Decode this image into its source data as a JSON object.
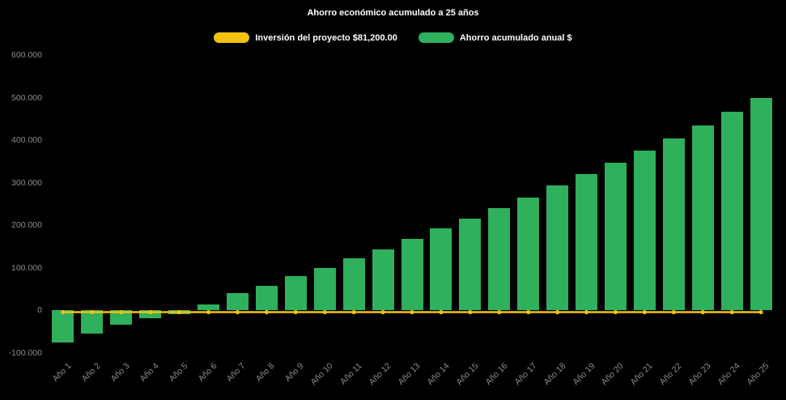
{
  "chart_data": {
    "type": "bar",
    "title": "Ahorro económico acumulado a 25 años",
    "background": "#000000",
    "legend_position": "top",
    "categories": [
      "Año 1",
      "Año 2",
      "Año 3",
      "Año 4",
      "Año 5",
      "Año 6",
      "Año 7",
      "Año 8",
      "Año 9",
      "Año 10",
      "Año 11",
      "Año 12",
      "Año 13",
      "Año 14",
      "Año 15",
      "Año 16",
      "Año 17",
      "Año 18",
      "Año 19",
      "Año 20",
      "Año 21",
      "Año 22",
      "Año 23",
      "Año 24",
      "Año 25"
    ],
    "series": [
      {
        "name": "Inversión del proyecto $81,200.00",
        "type": "line",
        "color": "#f2c20f",
        "values": [
          -4000,
          -4000,
          -4000,
          -4000,
          -4000,
          -4000,
          -4000,
          -4000,
          -4000,
          -4000,
          -4000,
          -4000,
          -4000,
          -4000,
          -4000,
          -4000,
          -4000,
          -4000,
          -4000,
          -4000,
          -4000,
          -4000,
          -4000,
          -4000,
          -4000
        ]
      },
      {
        "name": "Ahorro acumulado anual $",
        "type": "bar",
        "color": "#2eb05c",
        "values": [
          -75000,
          -55000,
          -33000,
          -18000,
          -8000,
          15000,
          40000,
          58000,
          80000,
          100000,
          122000,
          143000,
          168000,
          192000,
          215000,
          240000,
          265000,
          293000,
          320000,
          347000,
          375000,
          405000,
          435000,
          467000,
          500000
        ]
      }
    ],
    "ylim": [
      -100000,
      600000
    ],
    "yticks": [
      {
        "value": 600000,
        "label": "600.000"
      },
      {
        "value": 500000,
        "label": "500.000"
      },
      {
        "value": 400000,
        "label": "400.000"
      },
      {
        "value": 300000,
        "label": "300.000"
      },
      {
        "value": 200000,
        "label": "200.000"
      },
      {
        "value": 100000,
        "label": "100.000"
      },
      {
        "value": 0,
        "label": "0"
      },
      {
        "value": -100000,
        "label": "-100.000"
      }
    ]
  }
}
